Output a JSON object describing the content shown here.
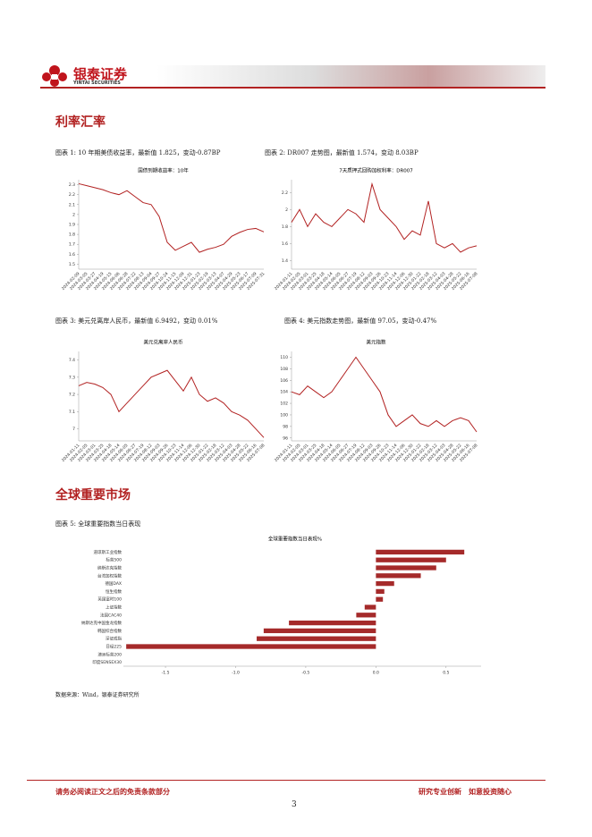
{
  "header": {
    "brand": "银泰证券",
    "brand_en": "YINTAI SECURITIES"
  },
  "sections": [
    "利率汇率",
    "全球重要市场"
  ],
  "captions": [
    "图表 1: 10 年期美债收益率，最新值 1.825，变动-0.87BP",
    "图表 2: DR007 走势图，最新值 1.574，变动 8.03BP",
    "图表 3: 美元兑离岸人民币，最新值 6.9492，变动 0.01%",
    "图表 4: 美元指数走势图，最新值 97.05，变动-0.47%",
    "图表 5: 全球重要指数当日表现"
  ],
  "source": "数据来源：Wind，银泰证券研究所",
  "footer": {
    "left": "请务必阅读正文之后的免责条款部分",
    "right": "研究专业创新　如意投资随心",
    "page": "3"
  },
  "chart_data": [
    {
      "type": "line",
      "title": "国债到期收益率：10年",
      "color": "#b22222",
      "categories": [
        "2024-02-09",
        "2024-03-05",
        "2024-03-27",
        "2024-04-19",
        "2024-05-15",
        "2024-06-06",
        "2024-06-28",
        "2024-07-22",
        "2024-08-13",
        "2024-09-04",
        "2024-09-27",
        "2024-10-24",
        "2024-11-15",
        "2024-12-09",
        "2024-12-31",
        "2025-01-23",
        "2025-02-19",
        "2025-03-13",
        "2025-04-07",
        "2025-04-29",
        "2025-05-23",
        "2025-06-17",
        "2025-07-09",
        "2025-07-31"
      ],
      "values": [
        2.31,
        2.29,
        2.27,
        2.25,
        2.22,
        2.2,
        2.24,
        2.18,
        2.12,
        2.1,
        1.98,
        1.72,
        1.64,
        1.68,
        1.72,
        1.62,
        1.65,
        1.67,
        1.7,
        1.78,
        1.82,
        1.85,
        1.86,
        1.825
      ],
      "ylim": [
        1.45,
        2.35
      ],
      "yticks": [
        1.5,
        1.6,
        1.7,
        1.8,
        1.9,
        2,
        2.1,
        2.2,
        2.3
      ]
    },
    {
      "type": "line",
      "title": "7天质押式回购加权利率：DR007",
      "color": "#b22222",
      "categories": [
        "2024-01-11",
        "2024-02-05",
        "2024-03-01",
        "2024-03-25",
        "2024-04-18",
        "2024-05-14",
        "2024-06-05",
        "2024-06-27",
        "2024-07-19",
        "2024-08-12",
        "2024-09-03",
        "2024-09-26",
        "2024-10-23",
        "2024-11-14",
        "2024-12-06",
        "2024-12-30",
        "2025-01-22",
        "2025-02-18",
        "2025-03-12",
        "2025-04-03",
        "2025-04-28",
        "2025-05-22",
        "2025-06-16",
        "2025-07-08"
      ],
      "values": [
        1.85,
        2.0,
        1.8,
        1.95,
        1.85,
        1.8,
        1.9,
        2.0,
        1.95,
        1.85,
        2.3,
        2.0,
        1.9,
        1.8,
        1.65,
        1.75,
        1.7,
        2.1,
        1.6,
        1.55,
        1.6,
        1.5,
        1.55,
        1.574
      ],
      "ylim": [
        1.3,
        2.35
      ],
      "yticks": [
        1.4,
        1.6,
        1.8,
        2,
        2.2
      ]
    },
    {
      "type": "line",
      "title": "美元兑离岸人民币",
      "color": "#b22222",
      "categories": [
        "2024-01-11",
        "2024-02-05",
        "2024-03-01",
        "2024-03-25",
        "2024-04-18",
        "2024-05-14",
        "2024-06-05",
        "2024-06-27",
        "2024-07-19",
        "2024-08-12",
        "2024-09-03",
        "2024-09-26",
        "2024-10-23",
        "2024-11-14",
        "2024-12-06",
        "2024-12-30",
        "2025-01-22",
        "2025-02-18",
        "2025-03-12",
        "2025-04-03",
        "2025-04-28",
        "2025-05-22",
        "2025-06-16",
        "2025-07-08"
      ],
      "values": [
        7.25,
        7.27,
        7.26,
        7.24,
        7.2,
        7.1,
        7.15,
        7.2,
        7.25,
        7.3,
        7.32,
        7.34,
        7.28,
        7.22,
        7.3,
        7.2,
        7.16,
        7.18,
        7.15,
        7.1,
        7.08,
        7.05,
        7.0,
        6.9492
      ],
      "ylim": [
        6.93,
        7.45
      ],
      "yticks": [
        7,
        7.1,
        7.2,
        7.3,
        7.4
      ]
    },
    {
      "type": "line",
      "title": "美元指数",
      "color": "#b22222",
      "categories": [
        "2024-01-11",
        "2024-02-05",
        "2024-03-01",
        "2024-03-25",
        "2024-04-18",
        "2024-05-14",
        "2024-06-05",
        "2024-06-27",
        "2024-07-19",
        "2024-08-12",
        "2024-09-03",
        "2024-09-26",
        "2024-10-23",
        "2024-11-14",
        "2024-12-06",
        "2024-12-30",
        "2025-01-22",
        "2025-02-18",
        "2025-03-12",
        "2025-04-03",
        "2025-04-28",
        "2025-05-22",
        "2025-06-16",
        "2025-07-08"
      ],
      "values": [
        104,
        103.5,
        105,
        104,
        103,
        104,
        106,
        108,
        110,
        108,
        106,
        104,
        100,
        98,
        99,
        100,
        98.5,
        98,
        99,
        98,
        99,
        99.5,
        99,
        97.05
      ],
      "ylim": [
        95.5,
        111
      ],
      "yticks": [
        96,
        98,
        100,
        102,
        104,
        106,
        108,
        110
      ]
    },
    {
      "type": "barh",
      "title": "全球重要指数当日表现%",
      "color": "#a52a2a",
      "categories": [
        "道琼斯工业指数",
        "标普500",
        "纳斯达克指数",
        "台湾加权指数",
        "德国DAX",
        "恒生指数",
        "英国富时100",
        "上证指数",
        "法国CAC40",
        "纳斯达克中国金龙指数",
        "韩国综合指数",
        "深证成指",
        "日经225",
        "澳洲标普200",
        "印度SENSEX30"
      ],
      "values": [
        0.63,
        0.5,
        0.43,
        0.32,
        0.13,
        0.06,
        0.05,
        -0.08,
        -0.14,
        -0.62,
        -0.8,
        -0.85,
        -1.78,
        0,
        0
      ],
      "xlim": [
        -1.8,
        0.75
      ],
      "xticks": [
        {
          "value": -1.5,
          "label": "-1.5"
        },
        {
          "value": -1,
          "label": "-1.0"
        },
        {
          "value": -0.5,
          "label": "-0.5"
        },
        {
          "value": 0,
          "label": "0.0"
        },
        {
          "value": 0.5,
          "label": "0.5"
        }
      ]
    }
  ]
}
